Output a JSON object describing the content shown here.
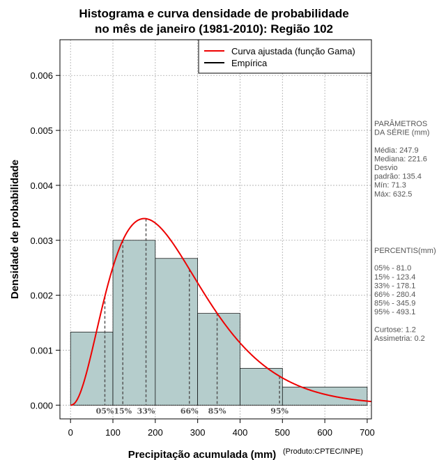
{
  "chart_data": {
    "type": "bar",
    "title_line1": "Histograma e curva densidade de probabilidade",
    "title_line2": "no mês de janeiro (1981-2010): Região 102",
    "xlabel": "Precipitação acumulada (mm)",
    "ylabel": "Densidade de probabilidade",
    "credit": "(Produto:CPTEC/INPE)",
    "xlim": [
      -25,
      710
    ],
    "ylim": [
      -0.00025,
      0.00665
    ],
    "x_ticks": [
      0,
      100,
      200,
      300,
      400,
      500,
      600,
      700
    ],
    "x_tick_labels": [
      "0",
      "100",
      "200",
      "300",
      "400",
      "500",
      "600",
      "700"
    ],
    "y_ticks": [
      0,
      0.001,
      0.002,
      0.003,
      0.004,
      0.005,
      0.006
    ],
    "y_tick_labels": [
      "0.000",
      "0.001",
      "0.002",
      "0.003",
      "0.004",
      "0.005",
      "0.006"
    ],
    "grid": true,
    "bins": [
      {
        "start": 0,
        "end": 100,
        "density": 0.00133
      },
      {
        "start": 100,
        "end": 200,
        "density": 0.003
      },
      {
        "start": 200,
        "end": 300,
        "density": 0.00267
      },
      {
        "start": 300,
        "end": 400,
        "density": 0.00167
      },
      {
        "start": 400,
        "end": 500,
        "density": 0.00067
      },
      {
        "start": 500,
        "end": 700,
        "density": 0.00033
      }
    ],
    "gamma_fit": {
      "shape": 3.35,
      "scale": 74.0
    },
    "percentile_markers": [
      {
        "label": "05%",
        "value": 81.0
      },
      {
        "label": "15%",
        "value": 123.4
      },
      {
        "label": "33%",
        "value": 178.1
      },
      {
        "label": "66%",
        "value": 280.4
      },
      {
        "label": "85%",
        "value": 345.9
      },
      {
        "label": "95%",
        "value": 493.1
      }
    ],
    "legend": {
      "position": "top-right",
      "entries": [
        {
          "label": "Curva ajustada (função Gama)",
          "color": "#ee0000"
        },
        {
          "label": "Empírica",
          "color": "#000000"
        }
      ]
    },
    "colors": {
      "bar_fill": "#b5cdcc",
      "curve": "#ee0000",
      "grid": "#aaaaaa",
      "side_text": "#555555"
    }
  },
  "side_panel": {
    "params": [
      "PARÂMETROS",
      " DA SÉRIE (mm)",
      "",
      "Média:  247.9",
      "Mediana:  221.6",
      "Desvio",
      "padrão:  135.4",
      "Mín:  71.3",
      "Máx:  632.5"
    ],
    "percentis": [
      " PERCENTIS(mm)",
      "",
      "05% -  81.0",
      "15% -  123.4",
      "33% -  178.1",
      "66% -  280.4",
      "85% -  345.9",
      "95% -  493.1",
      "",
      "Curtose:  1.2",
      "Assimetria:  0.2"
    ]
  }
}
